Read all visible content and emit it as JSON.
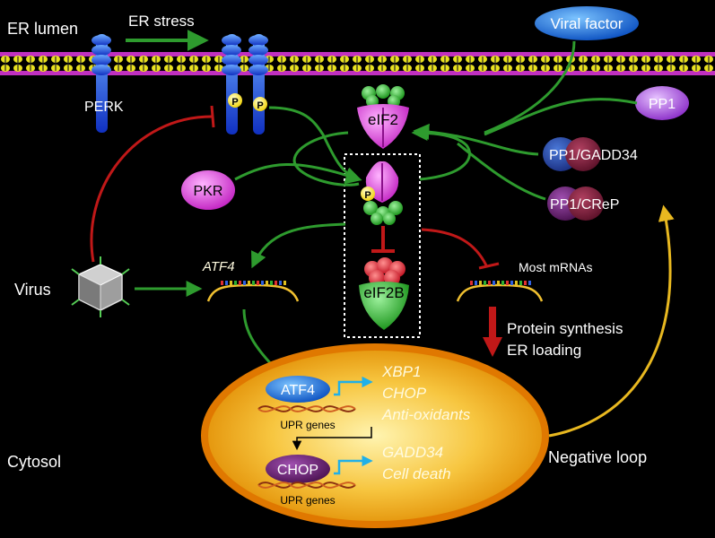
{
  "compartments": {
    "er_lumen": "ER lumen",
    "cytosol": "Cytosol"
  },
  "stimuli": {
    "er_stress": "ER stress",
    "viral_factor": "Viral factor",
    "virus": "Virus"
  },
  "kinases": {
    "perk": "PERK",
    "pkr": "PKR",
    "phospho": "P"
  },
  "phosphatases": {
    "pp1": "PP1",
    "pp1_gadd34": "PP1/GADD34",
    "pp1_crep": "PP1/CReP"
  },
  "translation": {
    "eif2": "eIF2",
    "eif2b": "eIF2B",
    "atf4_mrna": "ATF4",
    "most_mrnas": "Most mRNAs",
    "outcome_line1": "Protein synthesis",
    "outcome_line2": "ER loading"
  },
  "nucleus": {
    "atf4": "ATF4",
    "chop": "CHOP",
    "upr_genes_1": "UPR genes",
    "upr_genes_2": "UPR genes",
    "atf4_targets": [
      "XBP1",
      "CHOP",
      "Anti-oxidants"
    ],
    "chop_targets": [
      "GADD34",
      "Cell death"
    ]
  },
  "feedback": {
    "negative_loop": "Negative loop"
  },
  "colors": {
    "activation_arrow": "#2e9b2e",
    "inhibition": "#c01818",
    "feedback_arrow": "#e8b820",
    "nucleus_fill": "#f0a010",
    "membrane": "#c030c0"
  }
}
